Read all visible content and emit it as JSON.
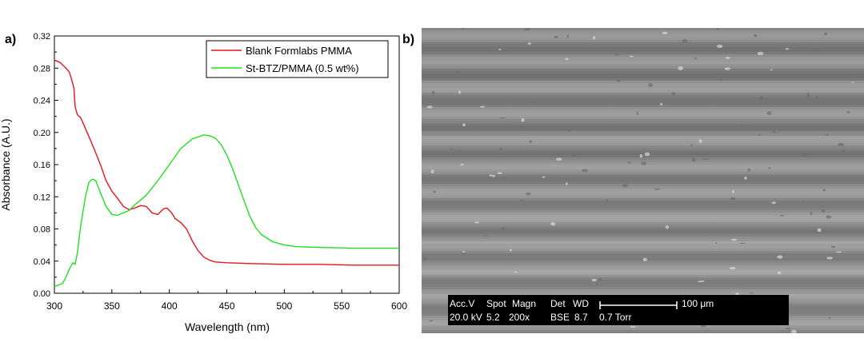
{
  "panels": {
    "a_label": "a)",
    "b_label": "b)"
  },
  "chart_data": {
    "type": "line",
    "title": "",
    "xlabel": "Wavelength (nm)",
    "ylabel": "Absorbance (A.U.)",
    "xlim": [
      300,
      600
    ],
    "ylim": [
      0.0,
      0.32
    ],
    "x_ticks": [
      "300",
      "350",
      "400",
      "450",
      "500",
      "550",
      "600"
    ],
    "y_ticks": [
      "0.00",
      "0.04",
      "0.08",
      "0.12",
      "0.16",
      "0.20",
      "0.24",
      "0.28",
      "0.32"
    ],
    "grid": false,
    "legend_position": "top-right",
    "series": [
      {
        "name": "Blank Formlabs PMMA",
        "color": "#e8141b",
        "points": [
          [
            300,
            0.29
          ],
          [
            305,
            0.287
          ],
          [
            310,
            0.28
          ],
          [
            313,
            0.275
          ],
          [
            315,
            0.266
          ],
          [
            317,
            0.255
          ],
          [
            318,
            0.232
          ],
          [
            320,
            0.222
          ],
          [
            323,
            0.218
          ],
          [
            326,
            0.208
          ],
          [
            330,
            0.195
          ],
          [
            335,
            0.178
          ],
          [
            340,
            0.16
          ],
          [
            345,
            0.14
          ],
          [
            350,
            0.127
          ],
          [
            355,
            0.118
          ],
          [
            360,
            0.108
          ],
          [
            365,
            0.104
          ],
          [
            370,
            0.106
          ],
          [
            375,
            0.109
          ],
          [
            380,
            0.108
          ],
          [
            385,
            0.1
          ],
          [
            390,
            0.098
          ],
          [
            395,
            0.105
          ],
          [
            398,
            0.106
          ],
          [
            402,
            0.1
          ],
          [
            405,
            0.093
          ],
          [
            410,
            0.088
          ],
          [
            415,
            0.08
          ],
          [
            420,
            0.065
          ],
          [
            425,
            0.053
          ],
          [
            430,
            0.045
          ],
          [
            435,
            0.041
          ],
          [
            440,
            0.039
          ],
          [
            450,
            0.038
          ],
          [
            470,
            0.037
          ],
          [
            500,
            0.036
          ],
          [
            530,
            0.036
          ],
          [
            560,
            0.035
          ],
          [
            600,
            0.035
          ]
        ]
      },
      {
        "name": "St-BTZ/PMMA (0.5 wt%)",
        "color": "#1fe01f",
        "points": [
          [
            300,
            0.008
          ],
          [
            303,
            0.01
          ],
          [
            307,
            0.012
          ],
          [
            310,
            0.02
          ],
          [
            313,
            0.03
          ],
          [
            316,
            0.038
          ],
          [
            318,
            0.036
          ],
          [
            320,
            0.05
          ],
          [
            323,
            0.085
          ],
          [
            327,
            0.12
          ],
          [
            330,
            0.138
          ],
          [
            333,
            0.142
          ],
          [
            336,
            0.14
          ],
          [
            340,
            0.125
          ],
          [
            345,
            0.108
          ],
          [
            350,
            0.098
          ],
          [
            355,
            0.097
          ],
          [
            360,
            0.1
          ],
          [
            365,
            0.103
          ],
          [
            370,
            0.11
          ],
          [
            380,
            0.122
          ],
          [
            390,
            0.14
          ],
          [
            400,
            0.16
          ],
          [
            410,
            0.18
          ],
          [
            420,
            0.192
          ],
          [
            430,
            0.197
          ],
          [
            435,
            0.196
          ],
          [
            440,
            0.193
          ],
          [
            445,
            0.185
          ],
          [
            450,
            0.172
          ],
          [
            455,
            0.155
          ],
          [
            460,
            0.135
          ],
          [
            465,
            0.115
          ],
          [
            470,
            0.096
          ],
          [
            475,
            0.082
          ],
          [
            480,
            0.073
          ],
          [
            490,
            0.064
          ],
          [
            500,
            0.06
          ],
          [
            510,
            0.058
          ],
          [
            530,
            0.057
          ],
          [
            560,
            0.056
          ],
          [
            600,
            0.056
          ]
        ]
      }
    ]
  },
  "sem": {
    "row1": {
      "accv": "Acc.V",
      "spot": "Spot",
      "magn": "Magn",
      "det": "Det",
      "wd": "WD",
      "scale": "100 μm"
    },
    "row2": {
      "accv": "20.0 kV",
      "spot": "5.2",
      "magn": "200x",
      "det": "BSE",
      "wd": "8.7",
      "pressure": "0.7 Torr"
    }
  }
}
